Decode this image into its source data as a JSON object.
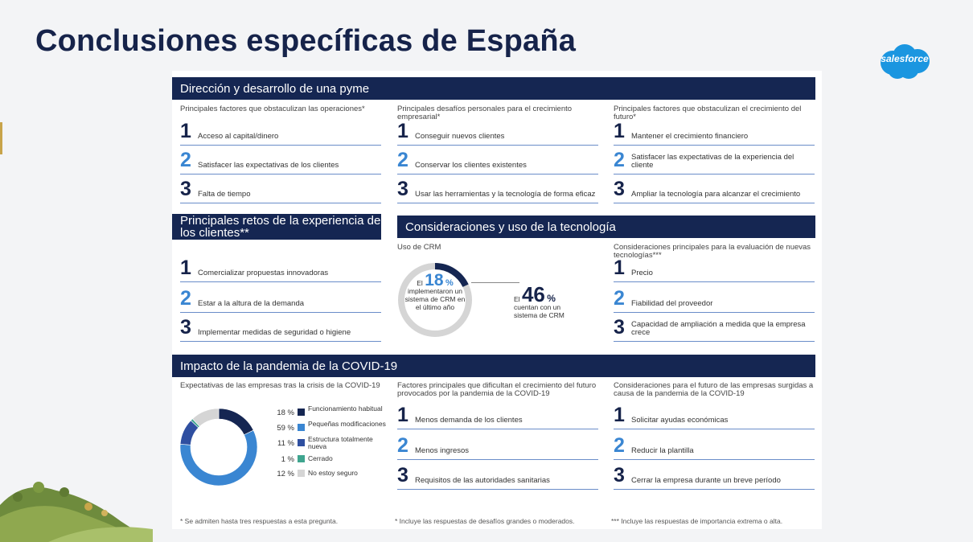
{
  "title": "Conclusiones específicas de España",
  "logo": {
    "text": "salesforce",
    "color": "#1b96e0"
  },
  "colors": {
    "navy": "#152652",
    "blue": "#3a86d2",
    "mid_blue": "#2f4fa0",
    "teal": "#3fa58f",
    "grey": "#d5d5d5"
  },
  "section1": {
    "title": "Dirección y desarrollo de una pyme",
    "columns": [
      {
        "caption": "Principales factores que obstaculizan las operaciones*",
        "items": [
          {
            "n": "1",
            "text": "Acceso al capital/dinero"
          },
          {
            "n": "2",
            "text": "Satisfacer las expectativas de los clientes"
          },
          {
            "n": "3",
            "text": "Falta de tiempo"
          }
        ]
      },
      {
        "caption": "Principales desafíos personales para el crecimiento empresarial*",
        "items": [
          {
            "n": "1",
            "text": "Conseguir nuevos clientes"
          },
          {
            "n": "2",
            "text": "Conservar los clientes existentes"
          },
          {
            "n": "3",
            "text": "Usar las herramientas y la tecnología de forma eficaz"
          }
        ]
      },
      {
        "caption": "Principales factores que obstaculizan el crecimiento del futuro*",
        "items": [
          {
            "n": "1",
            "text": "Mantener el crecimiento financiero"
          },
          {
            "n": "2",
            "text": "Satisfacer las expectativas de la experiencia del cliente"
          },
          {
            "n": "3",
            "text": "Ampliar la tecnología para alcanzar el crecimiento"
          }
        ]
      }
    ]
  },
  "section2": {
    "title": "Principales retos de la experiencia de los clientes**",
    "items": [
      {
        "n": "1",
        "text": "Comercializar propuestas innovadoras"
      },
      {
        "n": "2",
        "text": "Estar a la altura de la demanda"
      },
      {
        "n": "3",
        "text": "Implementar medidas de seguridad o higiene"
      }
    ]
  },
  "section3": {
    "title": "Consideraciones y uso de la tecnología",
    "crm_caption": "Uso de CRM",
    "crm_left": {
      "prefix": "El",
      "value": "18",
      "pct": "%",
      "text": "implementaron un sistema de CRM en el último año"
    },
    "crm_right": {
      "prefix": "El",
      "value": "46",
      "pct": "%",
      "text": "cuentan con un sistema de CRM"
    },
    "eval_caption": "Consideraciones principales para la evaluación de nuevas tecnologías***",
    "eval_items": [
      {
        "n": "1",
        "text": "Precio"
      },
      {
        "n": "2",
        "text": "Fiabilidad del proveedor"
      },
      {
        "n": "3",
        "text": "Capacidad de ampliación a medida que la empresa crece"
      }
    ]
  },
  "section4": {
    "title": "Impacto de la pandemia de la COVID-19",
    "exp_caption": "Expectativas de las empresas tras la crisis de la COVID-19",
    "factors_caption": "Factores principales que dificultan el crecimiento del futuro provocados por la pandemia de la COVID-19",
    "factors": [
      {
        "n": "1",
        "text": "Menos demanda de los clientes"
      },
      {
        "n": "2",
        "text": "Menos ingresos"
      },
      {
        "n": "3",
        "text": "Requisitos de las autoridades sanitarias"
      }
    ],
    "future_caption": "Consideraciones para el futuro de las empresas surgidas a causa de la pandemia de la COVID-19",
    "future": [
      {
        "n": "1",
        "text": "Solicitar ayudas económicas"
      },
      {
        "n": "2",
        "text": "Reducir la plantilla"
      },
      {
        "n": "3",
        "text": "Cerrar la empresa durante un breve período"
      }
    ]
  },
  "chart_data": {
    "type": "pie",
    "title": "",
    "series": [
      {
        "label": "Funcionamiento habitual",
        "value": 18,
        "value_text": "18 %",
        "color": "#152652"
      },
      {
        "label": "Pequeñas modificaciones",
        "value": 59,
        "value_text": "59 %",
        "color": "#3a86d2"
      },
      {
        "label": "Estructura totalmente nueva",
        "value": 11,
        "value_text": "11 %",
        "color": "#2f4fa0"
      },
      {
        "label": "Cerrado",
        "value": 1,
        "value_text": "1 %",
        "color": "#3fa58f"
      },
      {
        "label": "No estoy seguro",
        "value": 12,
        "value_text": "12 %",
        "color": "#d5d5d5"
      }
    ]
  },
  "crm_gauges": [
    {
      "value": 18,
      "color": "#152652",
      "track": "#d5d5d5"
    }
  ],
  "footnotes": [
    "* Se admiten hasta tres respuestas a esta pregunta.",
    "* Incluye las respuestas de desafíos grandes o moderados.",
    "*** Incluye las respuestas de importancia extrema o alta."
  ]
}
